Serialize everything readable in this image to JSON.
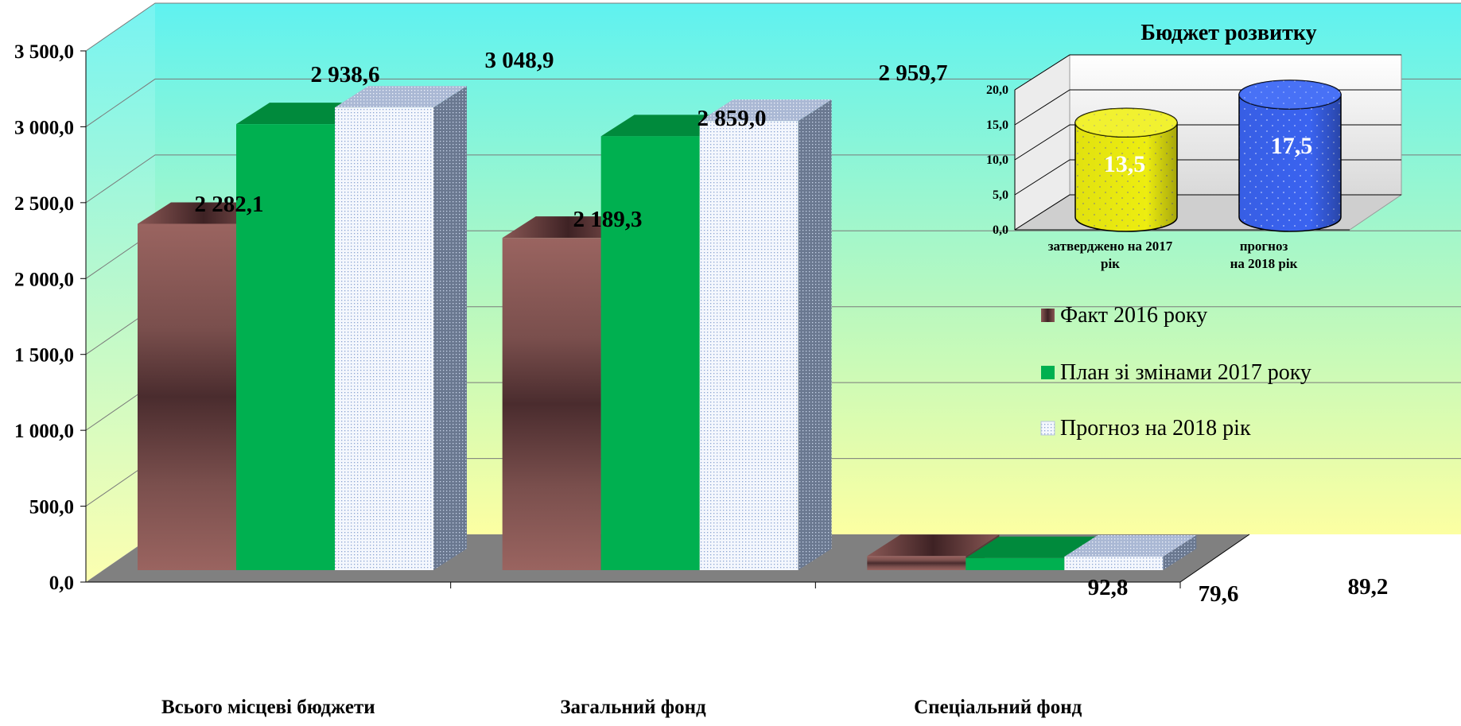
{
  "chart_data": [
    {
      "type": "bar",
      "categories": [
        "Всього місцеві бюджети",
        "Загальний фонд",
        "Спеціальний фонд"
      ],
      "series": [
        {
          "name": "Факт 2016 року",
          "values": [
            2282.1,
            2189.3,
            92.8
          ],
          "labels": [
            "2 282,1",
            "2 189,3",
            "92,8"
          ]
        },
        {
          "name": "План зі змінами 2017 року",
          "values": [
            2938.6,
            2859.0,
            79.6
          ],
          "labels": [
            "2 938,6",
            "2 859,0",
            "79,6"
          ]
        },
        {
          "name": "Прогноз на 2018 рік",
          "values": [
            3048.9,
            2959.7,
            89.2
          ],
          "labels": [
            "3 048,9",
            "2 959,7",
            "89,2"
          ]
        }
      ],
      "y_ticks": [
        "0,0",
        "500,0",
        "1 000,0",
        "1 500,0",
        "2 000,0",
        "2 500,0",
        "3 000,0",
        "3 500,0"
      ],
      "ylim": [
        0,
        3500
      ],
      "grid": true,
      "legend_position": "right",
      "colors": {
        "series": [
          "#8e5a57",
          "#00b050",
          "#eef3fb"
        ],
        "background_top": "#5ff0f0",
        "background_bottom": "#fbffa0",
        "floor": "#808080"
      }
    },
    {
      "type": "bar",
      "title": "Бюджет розвитку",
      "categories": [
        "затверджено на 2017 рік",
        "прогноз на 2018 рік"
      ],
      "category_lines": [
        [
          "затверджено на 2017",
          "рік"
        ],
        [
          "прогноз",
          "на 2018 рік"
        ]
      ],
      "values": [
        13.5,
        17.5
      ],
      "labels": [
        "13,5",
        "17,5"
      ],
      "y_ticks": [
        "0,0",
        "5,0",
        "10,0",
        "15,0",
        "20,0"
      ],
      "ylim": [
        0,
        20
      ],
      "shape": "cylinder",
      "colors": [
        "#f2f211",
        "#3a63f0"
      ]
    }
  ]
}
